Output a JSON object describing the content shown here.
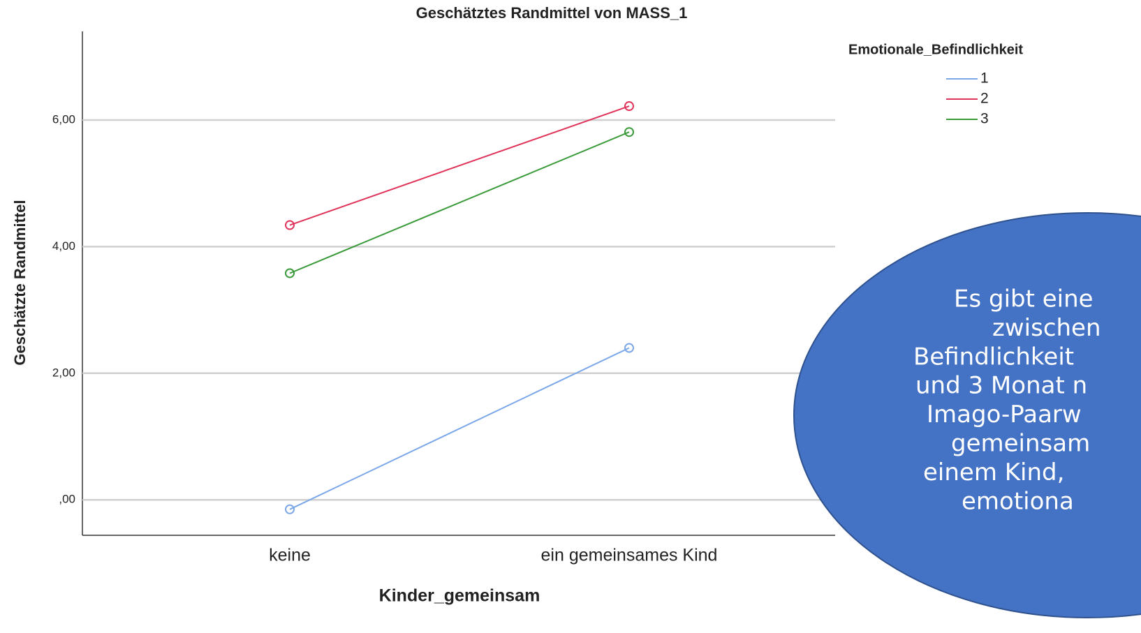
{
  "chart_data": {
    "type": "line",
    "title": "Geschätztes Randmittel von MASS_1",
    "x_label": "Kinder_gemeinsam",
    "y_label": "Geschätzte Randmittel",
    "legend_title": "Emotionale_Befindlichkeit",
    "legend": "outside-top-right",
    "grid": true,
    "categories": [
      "keine",
      "ein gemeinsames Kind"
    ],
    "series": [
      {
        "name": "1",
        "color": "#7ba7e8",
        "values": [
          -0.15,
          2.4
        ]
      },
      {
        "name": "2",
        "color": "#e0335a",
        "values": [
          4.34,
          6.22
        ]
      },
      {
        "name": "3",
        "color": "#3a9a3a",
        "values": [
          3.58,
          5.81
        ]
      }
    ],
    "ylim": [
      -0.56,
      7.4
    ],
    "yticks": [
      {
        "value": 0,
        "label": ",00"
      },
      {
        "value": 2,
        "label": "2,00"
      },
      {
        "value": 4,
        "label": "4,00"
      },
      {
        "value": 6,
        "label": "6,00"
      }
    ],
    "annotation": [
      "Es gibt eine",
      "zwischen",
      "Befindlichkeit",
      "und 3 Monat n",
      "Imago-Paarw",
      "gemeinsam",
      "einem Kind,",
      "emotiona"
    ]
  }
}
